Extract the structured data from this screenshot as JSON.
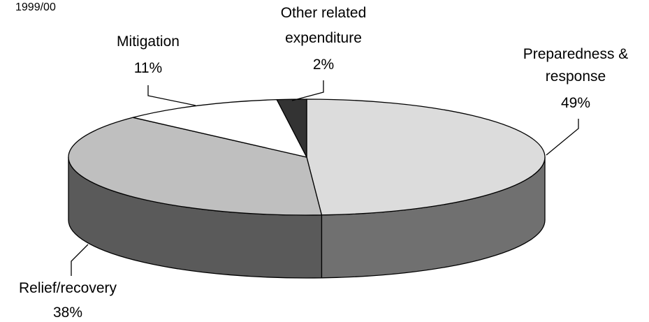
{
  "chart_data": {
    "type": "pie",
    "subtitle": "1999/00",
    "style": "3d",
    "slices": [
      {
        "label_lines": [
          "Preparedness &",
          "response"
        ],
        "value": 49,
        "value_text": "49%",
        "color": "#dcdcdc",
        "side_color": "#707070"
      },
      {
        "label_lines": [
          "Relief/recovery"
        ],
        "value": 38,
        "value_text": "38%",
        "color": "#bfbfbf",
        "side_color": "#5a5a5a"
      },
      {
        "label_lines": [
          "Mitigation"
        ],
        "value": 11,
        "value_text": "11%",
        "color": "#ffffff",
        "side_color": "#ffffff"
      },
      {
        "label_lines": [
          "Other related",
          "expenditure"
        ],
        "value": 2,
        "value_text": "2%",
        "color": "#333333",
        "side_color": "#222222"
      }
    ]
  }
}
